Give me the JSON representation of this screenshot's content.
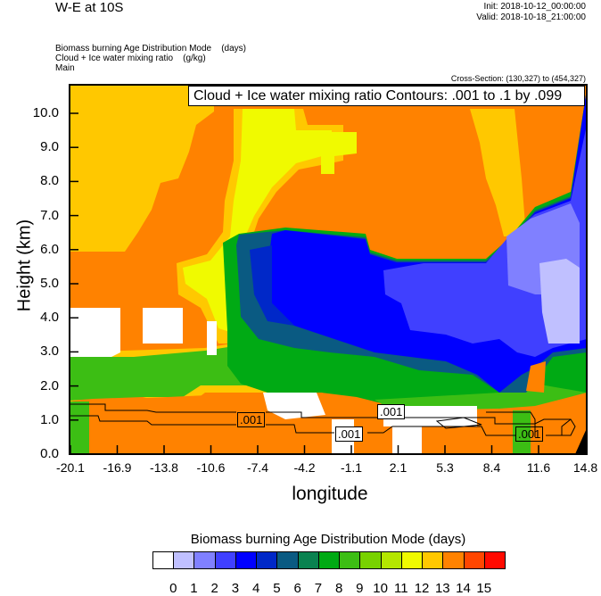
{
  "header": {
    "title": "W-E at 10S",
    "init": "Init: 2018-10-12_00:00:00",
    "valid": "Valid: 2018-10-18_21:00:00",
    "fields": [
      "Biomass burning Age Distribution Mode    (days)",
      "Cloud + Ice water mixing ratio    (g/kg)",
      "Main"
    ],
    "cross_section": "Cross-Section: (130,327) to (454,327)",
    "contour_legend": "Cloud + Ice water mixing ratio Contours: .001 to .1 by .099"
  },
  "chart_data": {
    "type": "heatmap",
    "subtype": "filled contour cross-section with line contours",
    "xlabel": "longitude",
    "ylabel": "Height (km)",
    "x_ticks": [
      "-20.1",
      "-16.9",
      "-13.8",
      "-10.6",
      "-7.4",
      "-4.2",
      "-1.1",
      "2.1",
      "5.3",
      "8.4",
      "11.6",
      "14.8"
    ],
    "y_ticks": [
      "0.0",
      "1.0",
      "2.0",
      "3.0",
      "4.0",
      "5.0",
      "6.0",
      "7.0",
      "8.0",
      "9.0",
      "10.0"
    ],
    "xlim": [
      -20.1,
      14.8
    ],
    "ylim": [
      0,
      10.8
    ],
    "colorbar": {
      "title": "Biomass burning Age Distribution Mode  (days)",
      "labels": [
        "0",
        "1",
        "2",
        "3",
        "4",
        "5",
        "6",
        "7",
        "8",
        "9",
        "10",
        "11",
        "12",
        "13",
        "14",
        "15"
      ],
      "colors": [
        "#FFFFFF",
        "#C0C0FF",
        "#8080FF",
        "#4040FF",
        "#0000FF",
        "#0028C8",
        "#0A5A82",
        "#0A8250",
        "#00AA14",
        "#3CBE14",
        "#78D200",
        "#B4E600",
        "#F0FA00",
        "#FFC800",
        "#FF8200",
        "#FF4600",
        "#FF0A00"
      ]
    },
    "contour_labels": [
      ".001",
      ".001",
      ".001",
      ".001"
    ]
  }
}
